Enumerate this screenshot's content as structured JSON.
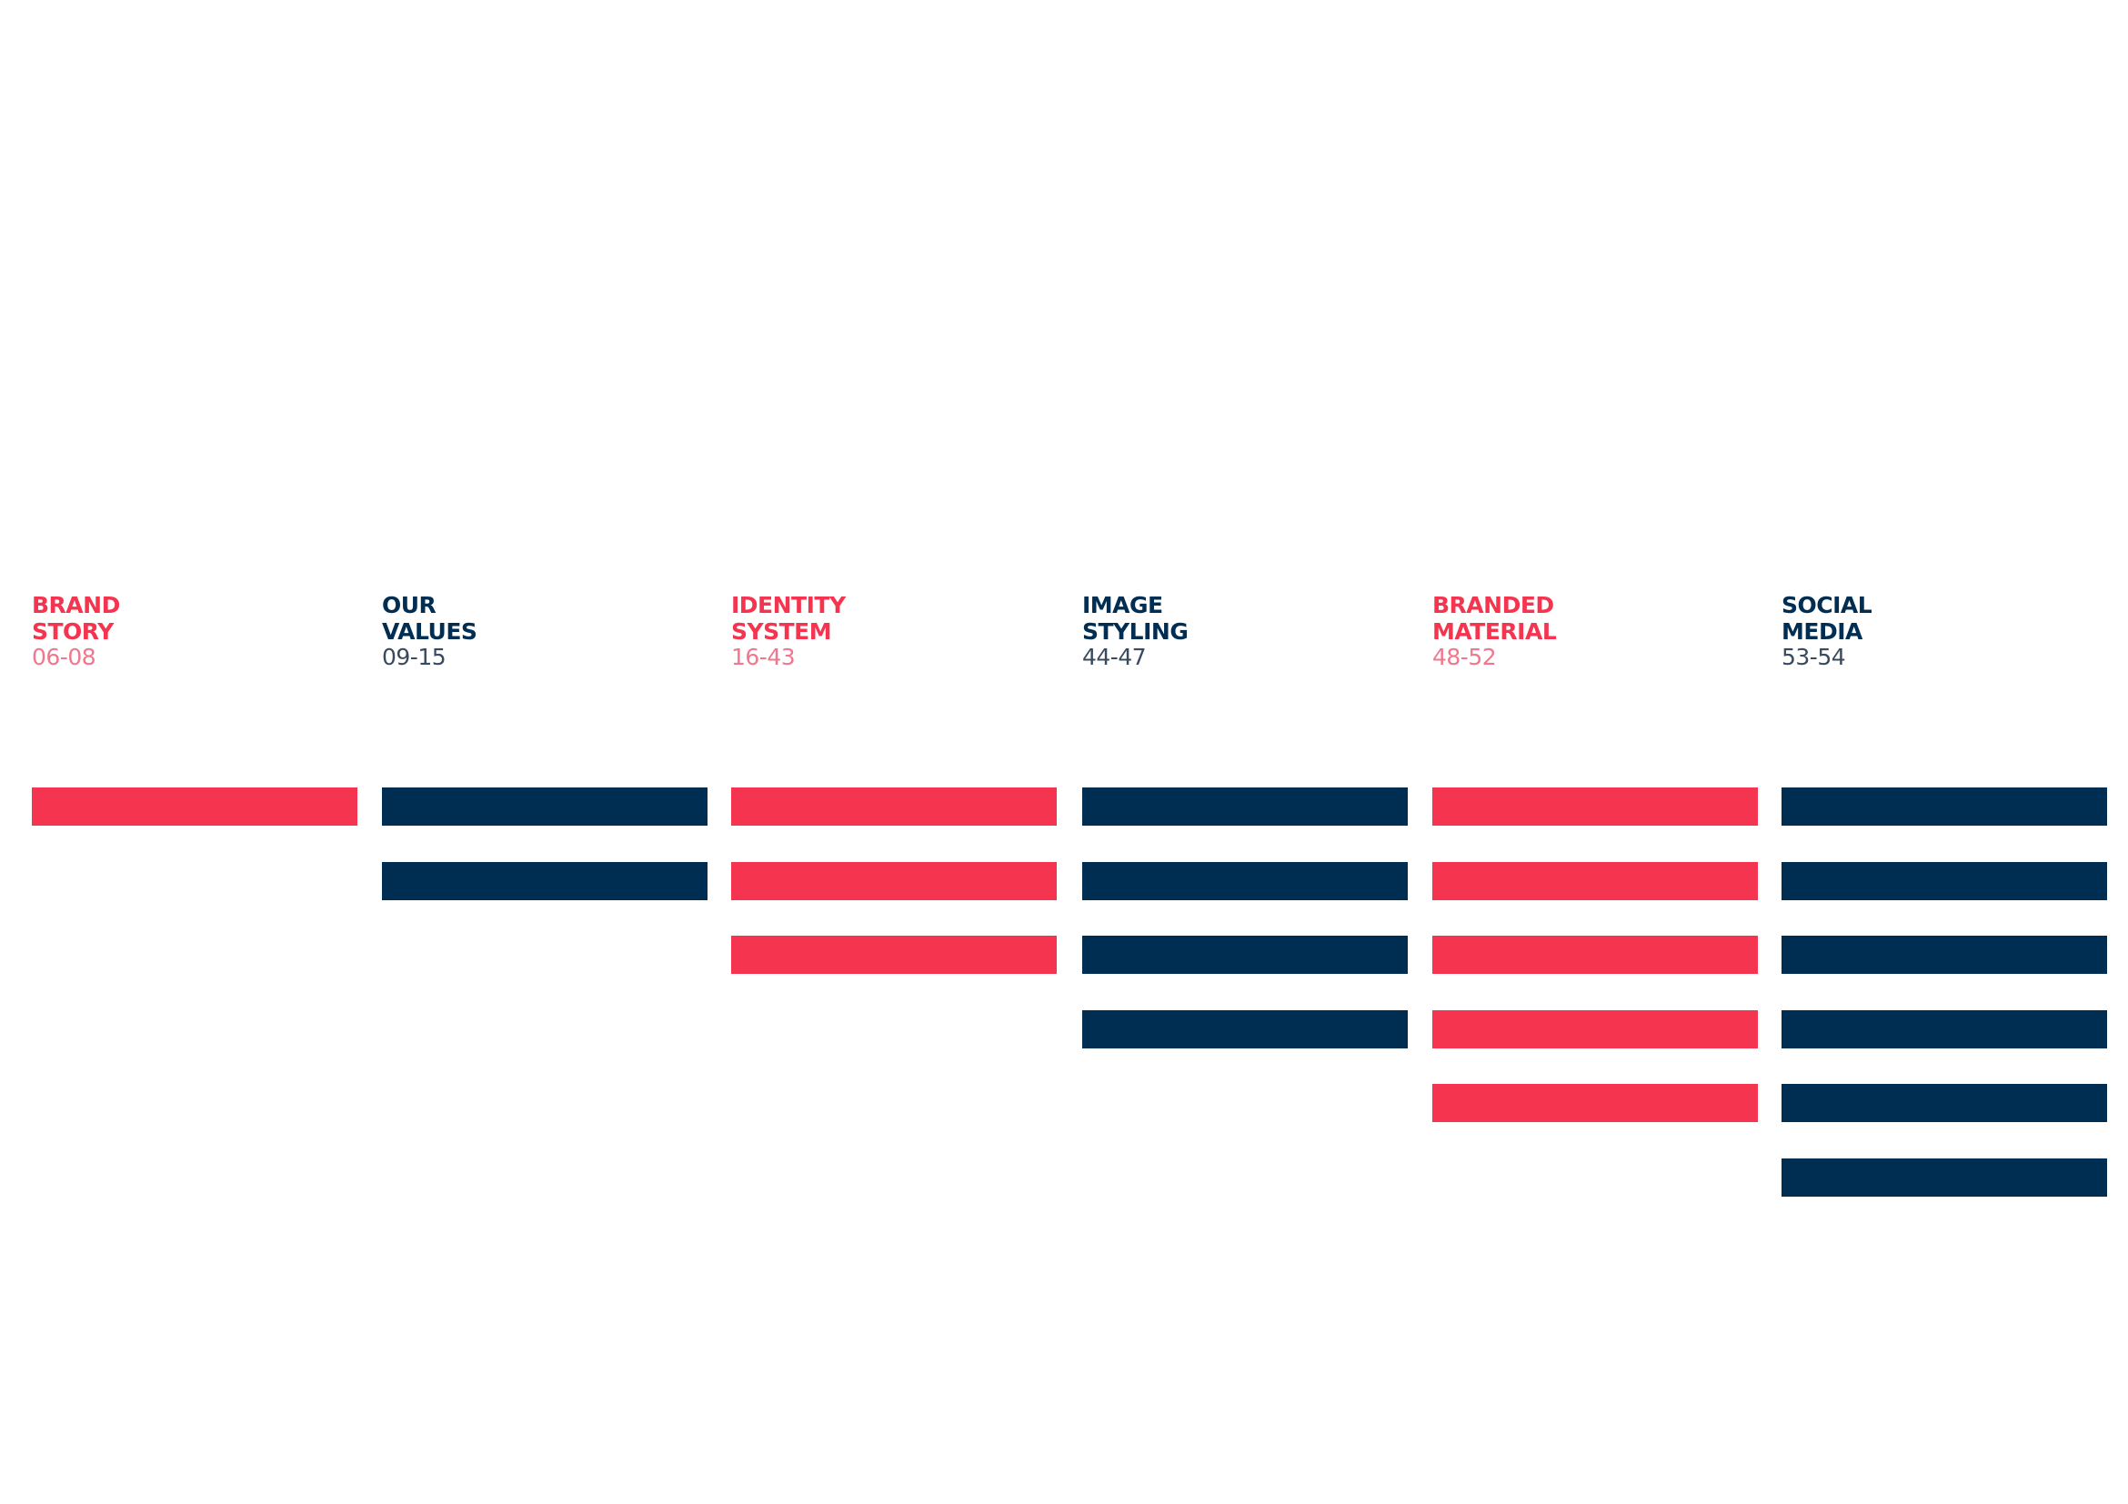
{
  "sections": [
    {
      "title": [
        "BRAND",
        "STORY"
      ],
      "pages": "06-08"
    },
    {
      "title": [
        "OUR",
        "VALUES"
      ],
      "pages": "09-15"
    },
    {
      "title": [
        "IDENTITY",
        "SYSTEM"
      ],
      "pages": "16-43"
    },
    {
      "title": [
        "IMAGE",
        "STYLING"
      ],
      "pages": "44-47"
    },
    {
      "title": [
        "BRANDED",
        "MATERIAL"
      ],
      "pages": "48-52"
    },
    {
      "title": [
        "SOCIAL",
        "MEDIA"
      ],
      "pages": "53-54"
    }
  ]
}
